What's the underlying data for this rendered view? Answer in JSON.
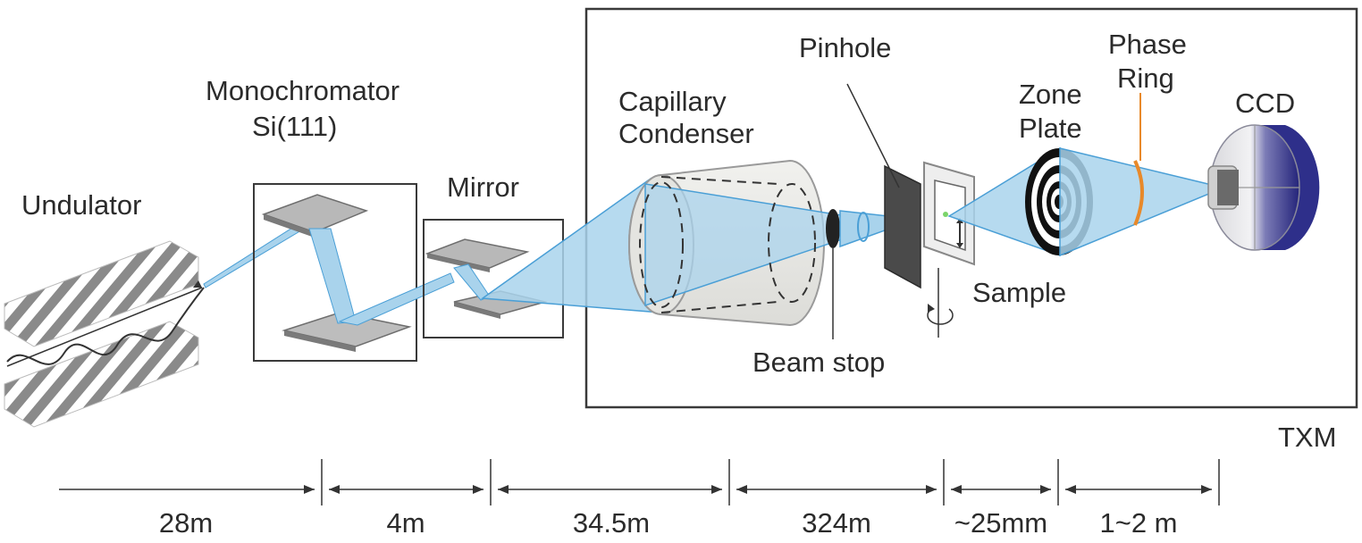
{
  "labels": {
    "undulator": "Undulator",
    "monochromator_line1": "Monochromator",
    "monochromator_line2": "Si(111)",
    "mirror": "Mirror",
    "capillary_line1": "Capillary",
    "capillary_line2": "Condenser",
    "pinhole": "Pinhole",
    "beam_stop": "Beam stop",
    "sample": "Sample",
    "zone_plate_line1": "Zone",
    "zone_plate_line2": "Plate",
    "phase_ring_line1": "Phase",
    "phase_ring_line2": "Ring",
    "ccd": "CCD",
    "txm": "TXM"
  },
  "distances": [
    "28m",
    "4m",
    "34.5m",
    "324m",
    "~25mm",
    "1~2 m"
  ],
  "colors": {
    "beam": "#a9d3ec",
    "beam_edge": "#4a9fd6",
    "outline": "#3a3a3a",
    "ccd_blue": "#2e2f8a",
    "phase_ring": "#e8892a",
    "mirror_plate": "#8c8c8c"
  }
}
